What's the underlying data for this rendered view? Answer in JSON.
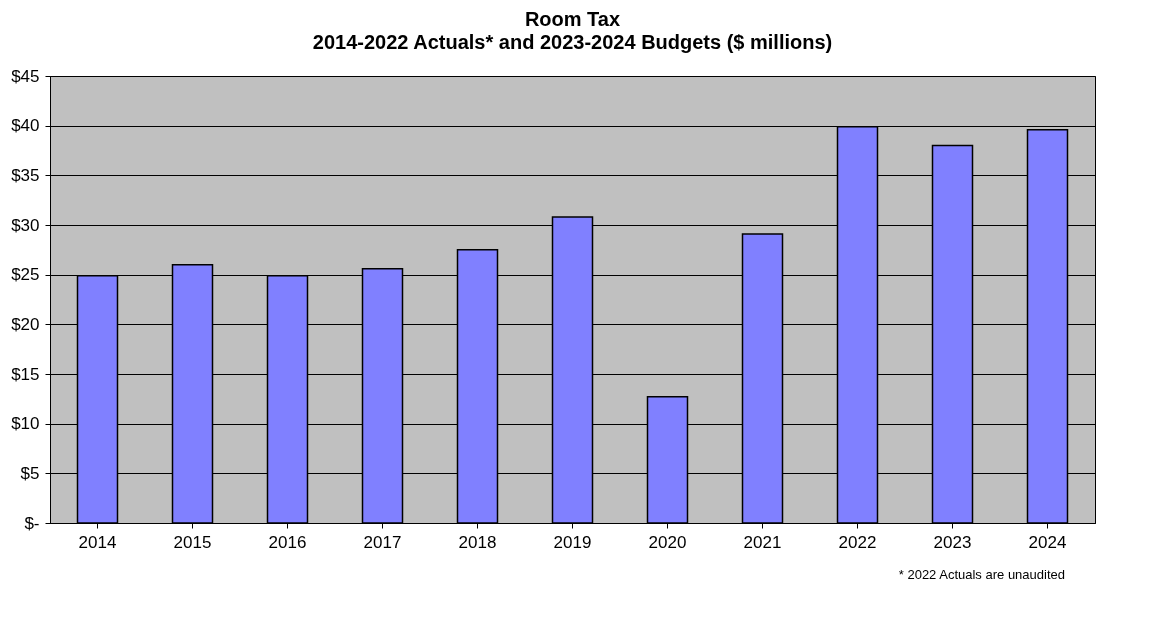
{
  "chart_data": {
    "type": "bar",
    "title": "Room Tax",
    "subtitle": "2014-2022 Actuals* and 2023-2024 Budgets ($ millions)",
    "categories": [
      "2014",
      "2015",
      "2016",
      "2017",
      "2018",
      "2019",
      "2020",
      "2021",
      "2022",
      "2023",
      "2024"
    ],
    "values": [
      24.9,
      26.0,
      24.9,
      25.6,
      27.5,
      30.8,
      12.7,
      29.1,
      39.9,
      38.0,
      39.6
    ],
    "color": "#8080ff",
    "ylim": [
      0,
      45
    ],
    "yticks": [
      {
        "value": 0,
        "label": "$-"
      },
      {
        "value": 5,
        "label": "$5"
      },
      {
        "value": 10,
        "label": "$10"
      },
      {
        "value": 15,
        "label": "$15"
      },
      {
        "value": 20,
        "label": "$20"
      },
      {
        "value": 25,
        "label": "$25"
      },
      {
        "value": 30,
        "label": "$30"
      },
      {
        "value": 35,
        "label": "$35"
      },
      {
        "value": 40,
        "label": "$40"
      },
      {
        "value": 45,
        "label": "$45"
      }
    ],
    "grid": "y",
    "annotations": [
      "* 2022 Actuals are unaudited"
    ]
  }
}
